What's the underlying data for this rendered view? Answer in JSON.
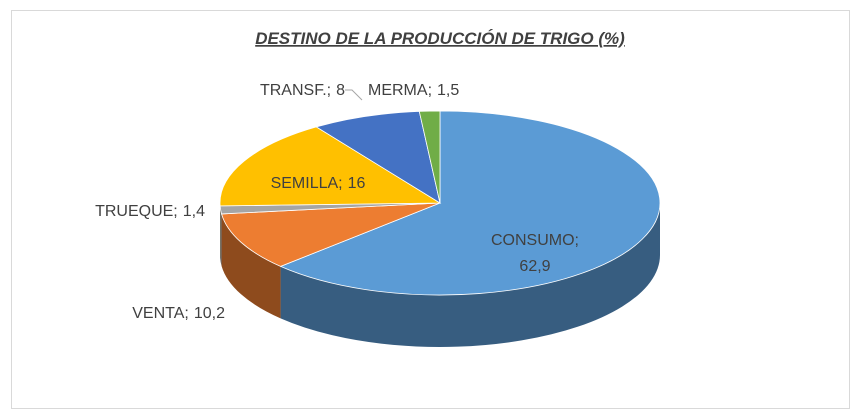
{
  "chart_data": {
    "type": "pie3d",
    "title": "DESTINO DE LA PRODUCCIÓN DE TRIGO (%)",
    "categories": [
      "CONSUMO",
      "VENTA",
      "TRUEQUE",
      "SEMILLA",
      "TRANSF.",
      "MERMA"
    ],
    "values": [
      62.9,
      10.2,
      1.4,
      16,
      8,
      1.5
    ],
    "value_labels": [
      "62,9",
      "10,2",
      "1,4",
      "16",
      "8",
      "1,5"
    ],
    "label_separator": ";",
    "colors": [
      "#5b9bd5",
      "#ed7d31",
      "#a5a5a5",
      "#ffc000",
      "#4472c4",
      "#70ad47"
    ]
  }
}
